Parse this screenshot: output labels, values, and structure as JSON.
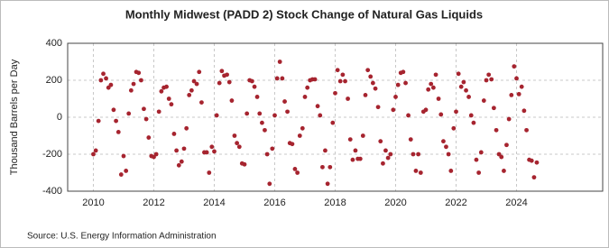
{
  "chart_data": {
    "type": "scatter",
    "title": "Monthly Midwest (PADD 2) Stock Change of Natural Gas Liquids",
    "y_label": "Thousand Barrels per Day",
    "source": "Source: U.S. Energy Information Administration",
    "color": "#a6242f",
    "grid": true,
    "xlim": [
      2009.15,
      2026.85
    ],
    "ylim": [
      -400,
      400
    ],
    "xticks": [
      2010,
      2012,
      2014,
      2016,
      2018,
      2020,
      2022,
      2024
    ],
    "yticks": [
      -400,
      -200,
      0,
      200,
      400
    ],
    "x": [
      2010.0,
      2010.08,
      2010.17,
      2010.25,
      2010.33,
      2010.42,
      2010.5,
      2010.58,
      2010.67,
      2010.75,
      2010.83,
      2010.92,
      2011.0,
      2011.08,
      2011.17,
      2011.25,
      2011.33,
      2011.42,
      2011.5,
      2011.58,
      2011.67,
      2011.75,
      2011.83,
      2011.92,
      2012.0,
      2012.08,
      2012.17,
      2012.25,
      2012.33,
      2012.42,
      2012.5,
      2012.58,
      2012.67,
      2012.75,
      2012.83,
      2012.92,
      2013.0,
      2013.08,
      2013.17,
      2013.25,
      2013.33,
      2013.42,
      2013.5,
      2013.58,
      2013.67,
      2013.75,
      2013.83,
      2013.92,
      2014.0,
      2014.08,
      2014.17,
      2014.25,
      2014.33,
      2014.42,
      2014.5,
      2014.58,
      2014.67,
      2014.75,
      2014.83,
      2014.92,
      2015.0,
      2015.08,
      2015.17,
      2015.25,
      2015.33,
      2015.42,
      2015.5,
      2015.58,
      2015.67,
      2015.75,
      2015.83,
      2015.92,
      2016.0,
      2016.08,
      2016.17,
      2016.25,
      2016.33,
      2016.42,
      2016.5,
      2016.58,
      2016.67,
      2016.75,
      2016.83,
      2016.92,
      2017.0,
      2017.08,
      2017.17,
      2017.25,
      2017.33,
      2017.42,
      2017.5,
      2017.58,
      2017.67,
      2017.75,
      2017.83,
      2017.92,
      2018.0,
      2018.08,
      2018.17,
      2018.25,
      2018.33,
      2018.42,
      2018.5,
      2018.58,
      2018.67,
      2018.75,
      2018.83,
      2018.92,
      2019.0,
      2019.08,
      2019.17,
      2019.25,
      2019.33,
      2019.42,
      2019.5,
      2019.58,
      2019.67,
      2019.75,
      2019.83,
      2019.92,
      2020.0,
      2020.08,
      2020.17,
      2020.25,
      2020.33,
      2020.42,
      2020.5,
      2020.58,
      2020.67,
      2020.75,
      2020.83,
      2020.92,
      2021.0,
      2021.08,
      2021.17,
      2021.25,
      2021.33,
      2021.42,
      2021.5,
      2021.58,
      2021.67,
      2021.75,
      2021.83,
      2021.92,
      2022.0,
      2022.08,
      2022.17,
      2022.25,
      2022.33,
      2022.42,
      2022.5,
      2022.58,
      2022.67,
      2022.75,
      2022.83,
      2022.92,
      2023.0,
      2023.08,
      2023.17,
      2023.25,
      2023.33,
      2023.42,
      2023.5,
      2023.58,
      2023.67,
      2023.75,
      2023.83,
      2023.92,
      2024.0,
      2024.08,
      2024.17,
      2024.25,
      2024.33,
      2024.42,
      2024.5,
      2024.58,
      2024.67
    ],
    "values": [
      -200,
      -180,
      -20,
      200,
      235,
      210,
      160,
      175,
      40,
      -20,
      -80,
      -310,
      -210,
      -290,
      20,
      145,
      180,
      245,
      240,
      200,
      45,
      -10,
      -110,
      -210,
      -215,
      -200,
      30,
      140,
      160,
      165,
      100,
      70,
      -90,
      -180,
      -260,
      -240,
      -170,
      -60,
      120,
      145,
      195,
      180,
      245,
      80,
      -190,
      -190,
      -300,
      -160,
      -185,
      10,
      185,
      250,
      225,
      230,
      190,
      90,
      -100,
      -140,
      -160,
      -250,
      -255,
      20,
      200,
      195,
      165,
      110,
      20,
      -30,
      -70,
      -200,
      -360,
      -170,
      10,
      210,
      300,
      210,
      85,
      30,
      -140,
      -145,
      -280,
      -300,
      -100,
      -60,
      110,
      160,
      200,
      205,
      205,
      60,
      10,
      -270,
      -180,
      -360,
      -270,
      -30,
      130,
      255,
      195,
      230,
      195,
      100,
      -120,
      -230,
      -180,
      -225,
      -225,
      -100,
      120,
      255,
      220,
      185,
      155,
      55,
      -130,
      -250,
      -180,
      -220,
      -200,
      40,
      110,
      175,
      240,
      245,
      185,
      10,
      -120,
      -200,
      -290,
      -200,
      -300,
      30,
      40,
      150,
      180,
      160,
      230,
      100,
      15,
      -130,
      -160,
      -200,
      -290,
      -60,
      30,
      235,
      165,
      190,
      145,
      110,
      10,
      -30,
      -230,
      -300,
      -190,
      90,
      200,
      230,
      205,
      50,
      -70,
      -200,
      -215,
      -290,
      -150,
      -10,
      120,
      275,
      210,
      125,
      165,
      35,
      -70,
      -230,
      -235,
      -325,
      -245
    ]
  }
}
